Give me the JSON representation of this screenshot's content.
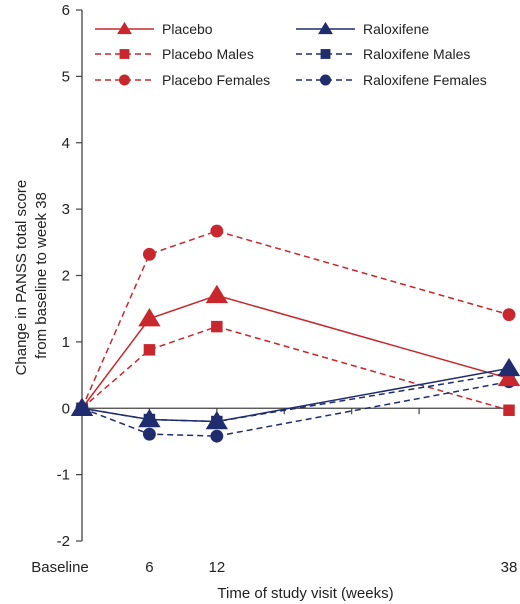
{
  "chart_data": {
    "type": "line",
    "xlabel": "Time of study visit (weeks)",
    "ylabel_lines": [
      "Change in PANSS total score",
      "from baseline to week 38"
    ],
    "x_tick_labels": [
      "Baseline",
      "6",
      "12",
      "38"
    ],
    "x_values": [
      0,
      6,
      12,
      38
    ],
    "x_range": [
      0,
      38
    ],
    "ylim": [
      -2,
      6
    ],
    "y_ticks": [
      -2,
      -1,
      0,
      1,
      2,
      3,
      4,
      5,
      6
    ],
    "y_tick_labels": [
      "-2",
      "-1",
      "0",
      "1",
      "2",
      "3",
      "4",
      "5",
      "6"
    ],
    "grid": false,
    "legend_position": "top",
    "series": [
      {
        "name": "Placebo",
        "color": "#c8282d",
        "dashed": false,
        "marker": "triangle",
        "values": [
          0,
          1.35,
          1.7,
          0.45
        ]
      },
      {
        "name": "Raloxifene",
        "color": "#1f2d6e",
        "dashed": false,
        "marker": "triangle",
        "values": [
          0,
          -0.17,
          -0.2,
          0.6
        ]
      },
      {
        "name": "Placebo Males",
        "color": "#c8282d",
        "dashed": true,
        "marker": "square",
        "values": [
          0,
          0.88,
          1.23,
          -0.03
        ]
      },
      {
        "name": "Raloxifene Males",
        "color": "#1f2d6e",
        "dashed": true,
        "marker": "square",
        "values": [
          0,
          -0.17,
          -0.2,
          0.53
        ]
      },
      {
        "name": "Placebo Females",
        "color": "#c8282d",
        "dashed": true,
        "marker": "circle",
        "values": [
          0,
          2.32,
          2.67,
          1.41
        ]
      },
      {
        "name": "Raloxifene Females",
        "color": "#1f2d6e",
        "dashed": true,
        "marker": "circle",
        "values": [
          0,
          -0.39,
          -0.42,
          0.4
        ]
      }
    ]
  }
}
